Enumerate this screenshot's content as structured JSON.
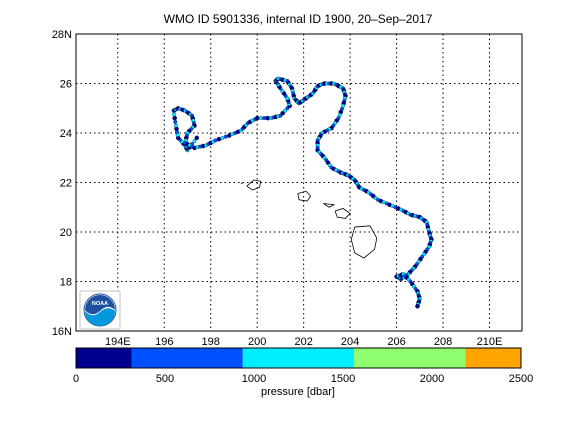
{
  "title": "WMO ID 5901336, internal ID 1900, 20–Sep–2017",
  "map": {
    "lon_range": [
      192.2,
      211.4
    ],
    "lat_range": [
      16,
      28
    ],
    "lat_ticks": [
      {
        "value": 16,
        "label": "16N"
      },
      {
        "value": 18,
        "label": "18"
      },
      {
        "value": 20,
        "label": "20"
      },
      {
        "value": 22,
        "label": "22"
      },
      {
        "value": 24,
        "label": "24"
      },
      {
        "value": 26,
        "label": "26"
      },
      {
        "value": 28,
        "label": "28N"
      }
    ],
    "lon_ticks": [
      {
        "value": 194,
        "label": "194E"
      },
      {
        "value": 196,
        "label": "196"
      },
      {
        "value": 198,
        "label": "198"
      },
      {
        "value": 200,
        "label": "200"
      },
      {
        "value": 202,
        "label": "202"
      },
      {
        "value": 204,
        "label": "204"
      },
      {
        "value": 206,
        "label": "206"
      },
      {
        "value": 208,
        "label": "208"
      },
      {
        "value": 210,
        "label": "210E"
      }
    ],
    "grid": true,
    "track": [
      [
        197.4,
        23.8
      ],
      [
        197.0,
        23.3
      ],
      [
        196.9,
        23.5
      ],
      [
        196.6,
        23.8
      ],
      [
        196.5,
        24.3
      ],
      [
        196.4,
        24.9
      ],
      [
        196.6,
        25.0
      ],
      [
        196.9,
        24.9
      ],
      [
        197.2,
        24.7
      ],
      [
        197.3,
        24.3
      ],
      [
        197.0,
        24.0
      ],
      [
        196.9,
        23.6
      ],
      [
        197.3,
        23.4
      ],
      [
        197.8,
        23.5
      ],
      [
        198.2,
        23.7
      ],
      [
        198.8,
        23.9
      ],
      [
        199.3,
        24.1
      ],
      [
        199.6,
        24.4
      ],
      [
        200.0,
        24.6
      ],
      [
        200.6,
        24.6
      ],
      [
        201.0,
        24.7
      ],
      [
        201.4,
        25.1
      ],
      [
        201.3,
        25.4
      ],
      [
        201.0,
        25.8
      ],
      [
        200.8,
        26.1
      ],
      [
        200.9,
        26.2
      ],
      [
        201.3,
        26.1
      ],
      [
        201.5,
        25.8
      ],
      [
        201.6,
        25.4
      ],
      [
        201.8,
        25.2
      ],
      [
        202.1,
        25.4
      ],
      [
        202.4,
        25.6
      ],
      [
        202.6,
        25.9
      ],
      [
        202.9,
        26.0
      ],
      [
        203.3,
        26.0
      ],
      [
        203.7,
        25.8
      ],
      [
        203.8,
        25.5
      ],
      [
        203.7,
        25.1
      ],
      [
        203.5,
        24.6
      ],
      [
        203.2,
        24.2
      ],
      [
        202.8,
        24.0
      ],
      [
        202.6,
        23.7
      ],
      [
        202.6,
        23.3
      ],
      [
        202.9,
        23.0
      ],
      [
        203.2,
        22.6
      ],
      [
        203.6,
        22.4
      ],
      [
        203.9,
        22.3
      ],
      [
        204.2,
        22.1
      ],
      [
        204.4,
        21.8
      ],
      [
        204.8,
        21.6
      ],
      [
        205.2,
        21.3
      ],
      [
        205.7,
        21.1
      ],
      [
        206.2,
        20.9
      ],
      [
        206.6,
        20.7
      ],
      [
        207.0,
        20.6
      ],
      [
        207.3,
        20.4
      ],
      [
        207.4,
        20.0
      ],
      [
        207.5,
        19.7
      ],
      [
        207.4,
        19.4
      ],
      [
        207.1,
        19.0
      ],
      [
        206.8,
        18.6
      ],
      [
        206.5,
        18.3
      ],
      [
        206.2,
        18.1
      ],
      [
        206.0,
        18.2
      ],
      [
        206.3,
        18.3
      ],
      [
        206.6,
        18.0
      ],
      [
        206.9,
        17.6
      ],
      [
        207.0,
        17.3
      ],
      [
        206.9,
        17.0
      ]
    ],
    "islands": [
      [
        [
          199.55,
          21.85
        ],
        [
          199.85,
          22.1
        ],
        [
          200.15,
          22.05
        ],
        [
          200.1,
          21.8
        ],
        [
          199.8,
          21.7
        ],
        [
          199.55,
          21.85
        ]
      ],
      [
        [
          201.75,
          21.55
        ],
        [
          202.1,
          21.65
        ],
        [
          202.3,
          21.45
        ],
        [
          202.15,
          21.25
        ],
        [
          201.8,
          21.3
        ],
        [
          201.75,
          21.55
        ]
      ],
      [
        [
          202.85,
          21.15
        ],
        [
          203.3,
          21.1
        ],
        [
          203.1,
          21.0
        ],
        [
          202.85,
          21.15
        ]
      ],
      [
        [
          203.35,
          20.85
        ],
        [
          203.7,
          20.95
        ],
        [
          204.0,
          20.75
        ],
        [
          203.8,
          20.55
        ],
        [
          203.45,
          20.6
        ],
        [
          203.35,
          20.85
        ]
      ],
      [
        [
          204.2,
          20.2
        ],
        [
          204.85,
          20.25
        ],
        [
          205.15,
          19.75
        ],
        [
          205.05,
          19.3
        ],
        [
          204.6,
          18.95
        ],
        [
          204.2,
          19.15
        ],
        [
          204.05,
          19.7
        ],
        [
          204.2,
          20.2
        ]
      ],
      [
        [
          199.3,
          21.95
        ],
        [
          199.4,
          22.0
        ]
      ]
    ]
  },
  "colorbar": {
    "label": "pressure [dbar]",
    "min": 0,
    "max": 2500,
    "tick_labels": [
      "0",
      "500",
      "1000",
      "1500",
      "2000",
      "2500"
    ],
    "bins": [
      {
        "from": 0,
        "to": 312,
        "color": "#00008f"
      },
      {
        "from": 312,
        "to": 937,
        "color": "#0050ff"
      },
      {
        "from": 937,
        "to": 1562,
        "color": "#00eeff"
      },
      {
        "from": 1562,
        "to": 2187,
        "color": "#8ffe6f"
      },
      {
        "from": 2187,
        "to": 2500,
        "color": "#ffa500"
      }
    ]
  },
  "logo": {
    "text": "NOAA",
    "colors": {
      "sky": "#1e50a0",
      "wave": "#0099dd"
    }
  }
}
